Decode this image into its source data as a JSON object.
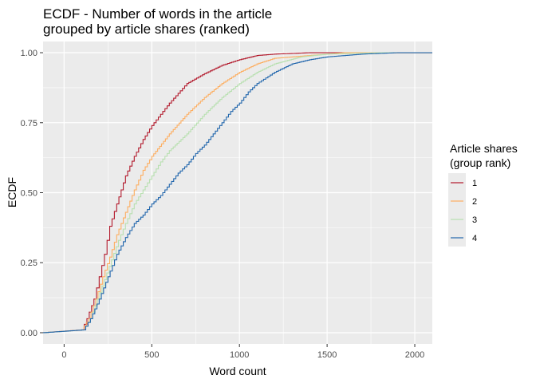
{
  "chart_data": {
    "type": "line",
    "subtype": "ecdf-step",
    "title": [
      "ECDF - Number of words in the article",
      "grouped by article shares (ranked)"
    ],
    "xlabel": "Word count",
    "ylabel": "ECDF",
    "xlim": [
      -120,
      2100
    ],
    "ylim": [
      -0.04,
      1.04
    ],
    "x_ticks": [
      0,
      500,
      1000,
      1500,
      2000
    ],
    "x_tick_labels": [
      "0",
      "500",
      "1000",
      "1500",
      "2000"
    ],
    "y_ticks": [
      0,
      0.25,
      0.5,
      0.75,
      1
    ],
    "y_tick_labels": [
      "0.00",
      "0.25",
      "0.50",
      "0.75",
      "1.00"
    ],
    "grid": true,
    "legend": {
      "title": [
        "Article shares",
        "(group rank)"
      ],
      "position": "right"
    },
    "series": [
      {
        "name": "1",
        "color": "#b2182b",
        "points": [
          [
            -120,
            0
          ],
          [
            100,
            0.01
          ],
          [
            130,
            0.05
          ],
          [
            170,
            0.12
          ],
          [
            200,
            0.2
          ],
          [
            230,
            0.28
          ],
          [
            260,
            0.38
          ],
          [
            300,
            0.46
          ],
          [
            350,
            0.56
          ],
          [
            400,
            0.63
          ],
          [
            450,
            0.69
          ],
          [
            500,
            0.74
          ],
          [
            550,
            0.78
          ],
          [
            600,
            0.82
          ],
          [
            650,
            0.855
          ],
          [
            700,
            0.89
          ],
          [
            800,
            0.925
          ],
          [
            900,
            0.955
          ],
          [
            1000,
            0.975
          ],
          [
            1100,
            0.99
          ],
          [
            1200,
            0.995
          ],
          [
            1400,
            1.0
          ],
          [
            2100,
            1.0
          ]
        ]
      },
      {
        "name": "2",
        "color": "#fdae61",
        "points": [
          [
            -120,
            0
          ],
          [
            100,
            0.01
          ],
          [
            140,
            0.05
          ],
          [
            180,
            0.12
          ],
          [
            220,
            0.2
          ],
          [
            260,
            0.27
          ],
          [
            300,
            0.35
          ],
          [
            350,
            0.43
          ],
          [
            400,
            0.51
          ],
          [
            450,
            0.58
          ],
          [
            500,
            0.63
          ],
          [
            600,
            0.71
          ],
          [
            700,
            0.78
          ],
          [
            800,
            0.84
          ],
          [
            900,
            0.89
          ],
          [
            1000,
            0.93
          ],
          [
            1100,
            0.96
          ],
          [
            1200,
            0.98
          ],
          [
            1400,
            0.99
          ],
          [
            1600,
            1.0
          ],
          [
            2100,
            1.0
          ]
        ]
      },
      {
        "name": "3",
        "color": "#b8e0b0",
        "points": [
          [
            -120,
            0
          ],
          [
            110,
            0.01
          ],
          [
            150,
            0.05
          ],
          [
            190,
            0.12
          ],
          [
            230,
            0.19
          ],
          [
            270,
            0.26
          ],
          [
            310,
            0.33
          ],
          [
            350,
            0.39
          ],
          [
            400,
            0.46
          ],
          [
            450,
            0.51
          ],
          [
            500,
            0.56
          ],
          [
            550,
            0.61
          ],
          [
            600,
            0.65
          ],
          [
            700,
            0.71
          ],
          [
            800,
            0.78
          ],
          [
            900,
            0.84
          ],
          [
            1000,
            0.89
          ],
          [
            1100,
            0.93
          ],
          [
            1200,
            0.96
          ],
          [
            1350,
            0.985
          ],
          [
            1500,
            0.995
          ],
          [
            1800,
            1.0
          ],
          [
            2100,
            1.0
          ]
        ]
      },
      {
        "name": "4",
        "color": "#2166ac",
        "points": [
          [
            -120,
            0
          ],
          [
            110,
            0.01
          ],
          [
            150,
            0.05
          ],
          [
            200,
            0.12
          ],
          [
            250,
            0.2
          ],
          [
            300,
            0.28
          ],
          [
            350,
            0.34
          ],
          [
            400,
            0.39
          ],
          [
            450,
            0.42
          ],
          [
            500,
            0.46
          ],
          [
            550,
            0.49
          ],
          [
            600,
            0.53
          ],
          [
            650,
            0.57
          ],
          [
            700,
            0.6
          ],
          [
            750,
            0.64
          ],
          [
            800,
            0.67
          ],
          [
            850,
            0.71
          ],
          [
            900,
            0.75
          ],
          [
            950,
            0.79
          ],
          [
            1000,
            0.82
          ],
          [
            1050,
            0.86
          ],
          [
            1100,
            0.89
          ],
          [
            1150,
            0.91
          ],
          [
            1200,
            0.93
          ],
          [
            1300,
            0.96
          ],
          [
            1400,
            0.975
          ],
          [
            1500,
            0.985
          ],
          [
            1700,
            0.995
          ],
          [
            1900,
            1.0
          ],
          [
            2100,
            1.0
          ]
        ]
      }
    ]
  }
}
